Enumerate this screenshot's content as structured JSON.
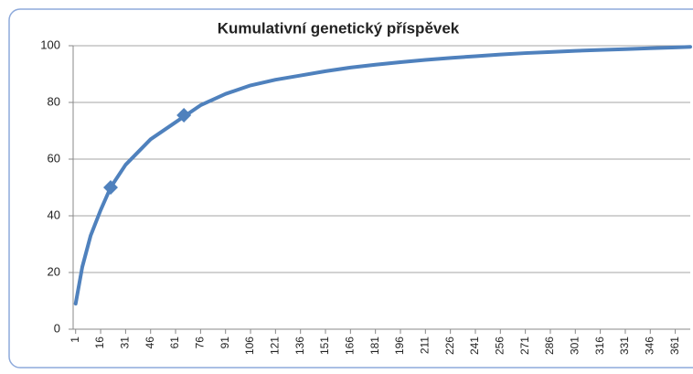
{
  "chart_data": {
    "type": "line",
    "title": "Kumulativní genetický příspěvek",
    "series": [
      {
        "color": "#4f81bd",
        "marker": "none",
        "x": [
          1,
          5,
          10,
          16,
          22,
          31,
          46,
          61,
          66,
          76,
          91,
          106,
          121,
          136,
          151,
          166,
          181,
          196,
          211,
          226,
          241,
          256,
          271,
          286,
          301,
          316,
          331,
          346,
          361,
          370
        ],
        "values": [
          9,
          22,
          33,
          42,
          50,
          58,
          67,
          73,
          75,
          79,
          83,
          86,
          88,
          89.5,
          91,
          92.3,
          93.3,
          94.2,
          95,
          95.7,
          96.3,
          96.9,
          97.4,
          97.8,
          98.2,
          98.5,
          98.8,
          99.1,
          99.4,
          99.6
        ]
      },
      {
        "color": "#4f81bd",
        "marker": "diamond",
        "x": [
          22,
          66
        ],
        "values": [
          50,
          75.5
        ]
      }
    ],
    "xlim": [
      -0.5,
      370
    ],
    "xticks": [
      1,
      16,
      31,
      46,
      61,
      76,
      91,
      106,
      121,
      136,
      151,
      166,
      181,
      196,
      211,
      226,
      241,
      256,
      271,
      286,
      301,
      316,
      331,
      346,
      361
    ],
    "ylim": [
      0,
      100
    ],
    "yticks": [
      0,
      20,
      40,
      60,
      80,
      100
    ],
    "grid": true
  }
}
